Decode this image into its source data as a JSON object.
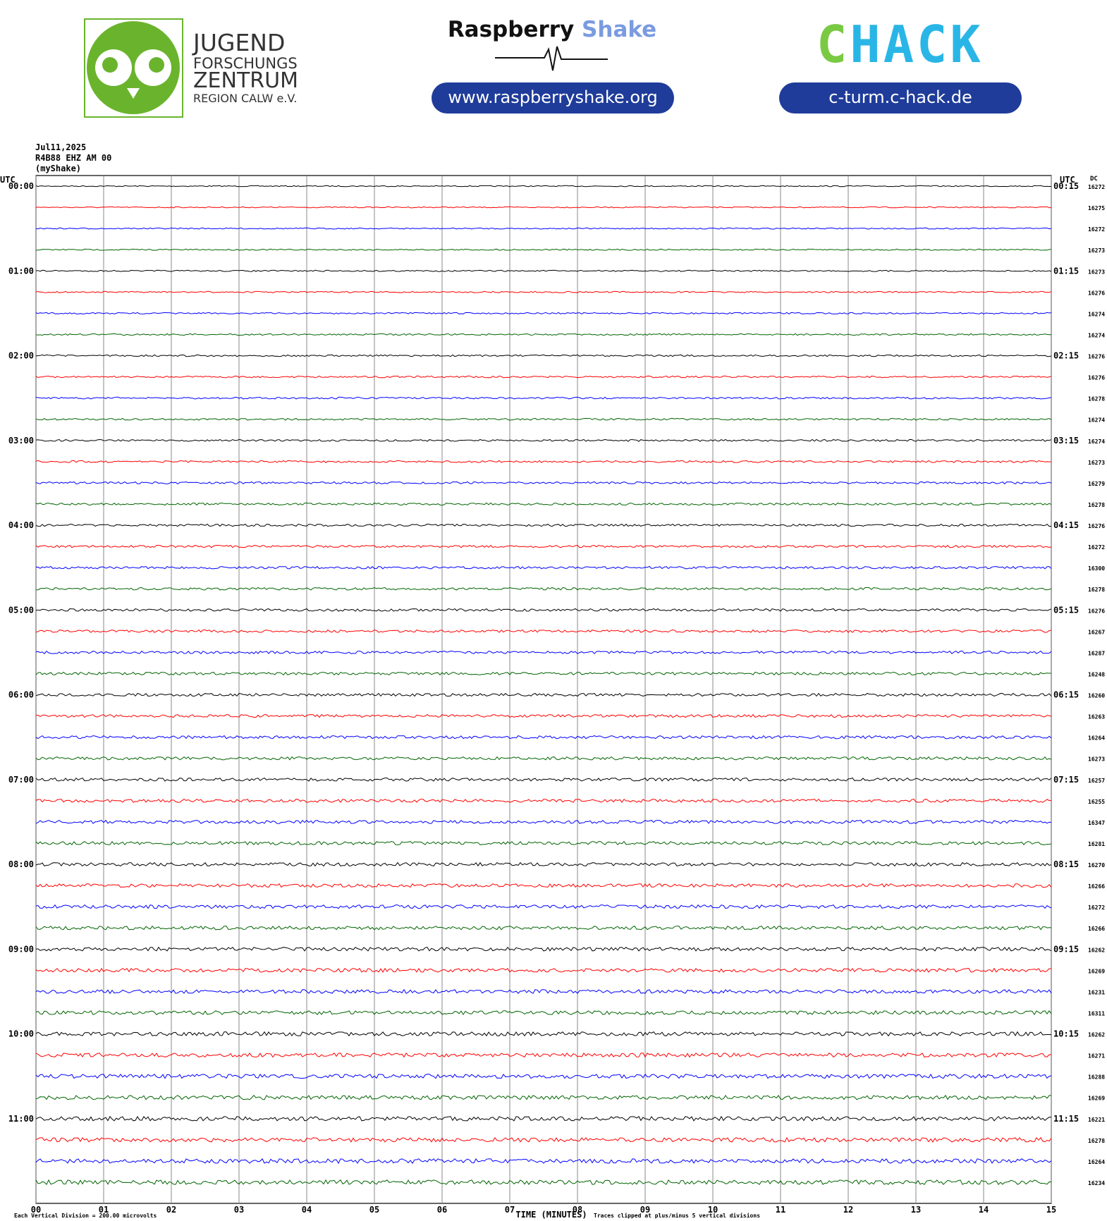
{
  "header": {
    "jfz": {
      "lines": [
        "JUGEND",
        "FORSCHUNGS",
        "ZENTRUM",
        "REGION CALW e.V."
      ]
    },
    "raspberry": {
      "word1": "Raspberry",
      "word2": "Shake",
      "url": "www.raspberryshake.org"
    },
    "chack": {
      "c": "C",
      "hack": "HACK",
      "url": "c-turm.c-hack.de"
    }
  },
  "chart_data": {
    "type": "helicorder",
    "date": "Jul11,2025",
    "station": "R4B88 EHZ AM 00",
    "source": "(myShake)",
    "left_axis_label": "UTC",
    "right_axis_label": "UTC",
    "dc_label": "DC",
    "left_labels": [
      "00:00",
      "01:00",
      "02:00",
      "03:00",
      "04:00",
      "05:00",
      "06:00",
      "07:00",
      "08:00",
      "09:00",
      "10:00",
      "11:00"
    ],
    "right_labels": [
      "00:15",
      "01:15",
      "02:15",
      "03:15",
      "04:15",
      "05:15",
      "06:15",
      "07:15",
      "08:15",
      "09:15",
      "10:15",
      "11:15"
    ],
    "dc_values": [
      16272,
      16275,
      16272,
      16273,
      16273,
      16276,
      16274,
      16274,
      16276,
      16276,
      16278,
      16274,
      16274,
      16273,
      16279,
      16278,
      16276,
      16272,
      16300,
      16278,
      16276,
      16267,
      16287,
      16248,
      16260,
      16263,
      16264,
      16273,
      16257,
      16255,
      16347,
      16281,
      16270,
      16266,
      16272,
      16266,
      16262,
      16269,
      16231,
      16311,
      16262,
      16271,
      16288,
      16269,
      16221,
      16278,
      16264,
      16234
    ],
    "trace_colors": [
      "#000000",
      "#ff0000",
      "#0000ff",
      "#006400"
    ],
    "xlim": [
      0,
      15
    ],
    "xticks": [
      {
        "value": 0,
        "label": "00"
      },
      {
        "value": 1,
        "label": "01"
      },
      {
        "value": 2,
        "label": "02"
      },
      {
        "value": 3,
        "label": "03"
      },
      {
        "value": 4,
        "label": "04"
      },
      {
        "value": 5,
        "label": "05"
      },
      {
        "value": 6,
        "label": "06"
      },
      {
        "value": 7,
        "label": "07"
      },
      {
        "value": 8,
        "label": "08"
      },
      {
        "value": 9,
        "label": "09"
      },
      {
        "value": 10,
        "label": "10"
      },
      {
        "value": 11,
        "label": "11"
      },
      {
        "value": 12,
        "label": "12"
      },
      {
        "value": 13,
        "label": "13"
      },
      {
        "value": 14,
        "label": "14"
      },
      {
        "value": 15,
        "label": "15"
      }
    ],
    "xlabel": "TIME (MINUTES)",
    "footer_left": "Each Vertical Division = 200.00 microvolts",
    "footer_right": "Traces clipped at plus/minus 5 vertical divisions"
  }
}
